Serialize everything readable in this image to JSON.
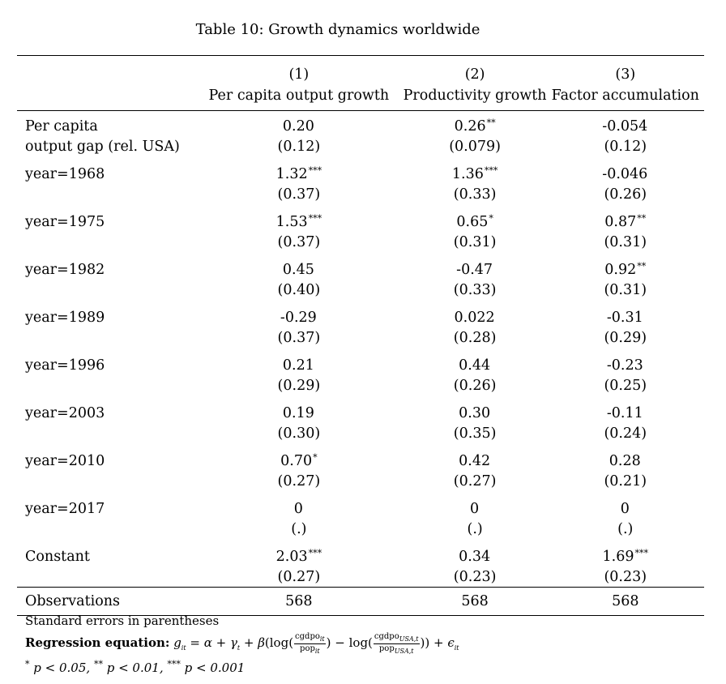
{
  "caption": "Table 10: Growth dynamics worldwide",
  "columns": [
    {
      "number": "(1)",
      "title": "Per capita output growth"
    },
    {
      "number": "(2)",
      "title": "Productivity growth"
    },
    {
      "number": "(3)",
      "title": "Factor accumulation"
    }
  ],
  "rows": [
    {
      "label": [
        "Per capita",
        "output gap (rel. USA)"
      ],
      "coef": [
        "0.20",
        "0.26",
        "-0.054"
      ],
      "stars": [
        "",
        "**",
        ""
      ],
      "se": [
        "(0.12)",
        "(0.079)",
        "(0.12)"
      ]
    },
    {
      "label": [
        "year=1968"
      ],
      "coef": [
        "1.32",
        "1.36",
        "-0.046"
      ],
      "stars": [
        "***",
        "***",
        ""
      ],
      "se": [
        "(0.37)",
        "(0.33)",
        "(0.26)"
      ]
    },
    {
      "label": [
        "year=1975"
      ],
      "coef": [
        "1.53",
        "0.65",
        "0.87"
      ],
      "stars": [
        "***",
        "*",
        "**"
      ],
      "se": [
        "(0.37)",
        "(0.31)",
        "(0.31)"
      ]
    },
    {
      "label": [
        "year=1982"
      ],
      "coef": [
        "0.45",
        "-0.47",
        "0.92"
      ],
      "stars": [
        "",
        "",
        "**"
      ],
      "se": [
        "(0.40)",
        "(0.33)",
        "(0.31)"
      ]
    },
    {
      "label": [
        "year=1989"
      ],
      "coef": [
        "-0.29",
        "0.022",
        "-0.31"
      ],
      "stars": [
        "",
        "",
        ""
      ],
      "se": [
        "(0.37)",
        "(0.28)",
        "(0.29)"
      ]
    },
    {
      "label": [
        "year=1996"
      ],
      "coef": [
        "0.21",
        "0.44",
        "-0.23"
      ],
      "stars": [
        "",
        "",
        ""
      ],
      "se": [
        "(0.29)",
        "(0.26)",
        "(0.25)"
      ]
    },
    {
      "label": [
        "year=2003"
      ],
      "coef": [
        "0.19",
        "0.30",
        "-0.11"
      ],
      "stars": [
        "",
        "",
        ""
      ],
      "se": [
        "(0.30)",
        "(0.35)",
        "(0.24)"
      ]
    },
    {
      "label": [
        "year=2010"
      ],
      "coef": [
        "0.70",
        "0.42",
        "0.28"
      ],
      "stars": [
        "*",
        "",
        ""
      ],
      "se": [
        "(0.27)",
        "(0.27)",
        "(0.21)"
      ]
    },
    {
      "label": [
        "year=2017"
      ],
      "coef": [
        "0",
        "0",
        "0"
      ],
      "stars": [
        "",
        "",
        ""
      ],
      "se": [
        "(.)",
        "(.)",
        "(.)"
      ]
    },
    {
      "label": [
        "Constant"
      ],
      "coef": [
        "2.03",
        "0.34",
        "1.69"
      ],
      "stars": [
        "***",
        "",
        "***"
      ],
      "se": [
        "(0.27)",
        "(0.23)",
        "(0.23)"
      ]
    }
  ],
  "observations": {
    "label": "Observations",
    "values": [
      "568",
      "568",
      "568"
    ]
  },
  "notes": {
    "se_note": "Standard errors in parentheses",
    "eq_label": "Regression equation:",
    "significance": {
      "star1": "*",
      "p1": "p < 0.05,",
      "star2": "**",
      "p2": "p < 0.01,",
      "star3": "***",
      "p3": "p < 0.001"
    }
  }
}
